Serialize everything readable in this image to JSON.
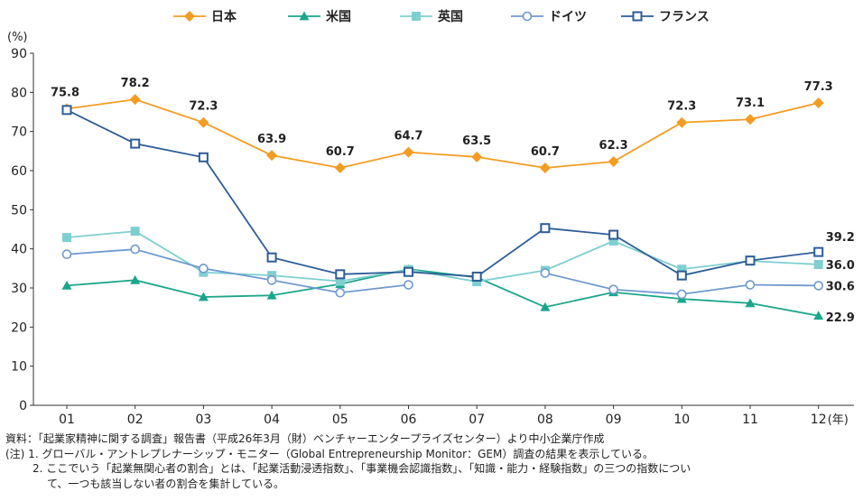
{
  "chart_data": {
    "type": "line",
    "title": "",
    "ylabel": "(%)",
    "xlabel_suffix": "(年)",
    "ylim": [
      0,
      90
    ],
    "yticks": [
      0,
      10,
      20,
      30,
      40,
      50,
      60,
      70,
      80,
      90
    ],
    "categories": [
      "01",
      "02",
      "03",
      "04",
      "05",
      "06",
      "07",
      "08",
      "09",
      "10",
      "11",
      "12"
    ],
    "grid": false,
    "legend_position": "top",
    "series": [
      {
        "name": "日本",
        "color": "#f39c21",
        "marker": "diamond",
        "values": [
          75.8,
          78.2,
          72.3,
          63.9,
          60.7,
          64.7,
          63.5,
          60.7,
          62.3,
          72.3,
          73.1,
          77.3
        ],
        "labels": [
          "75.8",
          "78.2",
          "72.3",
          "63.9",
          "60.7",
          "64.7",
          "63.5",
          "60.7",
          "62.3",
          "72.3",
          "73.1",
          "77.3"
        ]
      },
      {
        "name": "米国",
        "color": "#1aa68a",
        "marker": "triangle",
        "values": [
          30.6,
          32.0,
          27.7,
          28.1,
          31.0,
          34.8,
          32.7,
          25.1,
          28.9,
          27.2,
          26.1,
          22.9
        ],
        "labels": [
          "",
          "",
          "",
          "",
          "",
          "",
          "",
          "",
          "",
          "",
          "",
          "22.9"
        ]
      },
      {
        "name": "英国",
        "color": "#7fcfd0",
        "marker": "square",
        "values": [
          42.9,
          44.5,
          34.0,
          33.2,
          31.7,
          34.7,
          31.6,
          34.5,
          42.0,
          34.8,
          36.9,
          36.0
        ],
        "labels": [
          "",
          "",
          "",
          "",
          "",
          "",
          "",
          "",
          "",
          "",
          "",
          "36.0"
        ]
      },
      {
        "name": "ドイツ",
        "color": "#6f9ad0",
        "marker": "circle",
        "values": [
          38.6,
          39.9,
          35.0,
          32.0,
          28.8,
          30.8,
          null,
          33.8,
          29.6,
          28.4,
          30.8,
          30.6
        ],
        "labels": [
          "",
          "",
          "",
          "",
          "",
          "",
          "",
          "",
          "",
          "",
          "",
          "30.6"
        ]
      },
      {
        "name": "フランス",
        "color": "#2c5d97",
        "marker": "open-square",
        "values": [
          75.5,
          66.9,
          63.4,
          37.8,
          33.5,
          34.1,
          32.9,
          45.3,
          43.6,
          33.2,
          37.0,
          39.2
        ],
        "labels": [
          "",
          "",
          "",
          "",
          "",
          "",
          "",
          "",
          "",
          "",
          "",
          "39.2"
        ]
      }
    ]
  },
  "notes": [
    "資料：「起業家精神に関する調査」報告書（平成26年3月（財）ベンチャーエンタープライズセンター）より中小企業庁作成",
    "(注) 1. グローバル・アントレプレナーシップ・モニター（Global Entrepreneurship Monitor：GEM）調査の結果を表示している。",
    "2. ここでいう「起業無関心者の割合」とは、「起業活動浸透指数」、「事業機会認識指数」、「知識・能力・経験指数」の三つの指数につい",
    "て、一つも該当しない者の割合を集計している。"
  ]
}
